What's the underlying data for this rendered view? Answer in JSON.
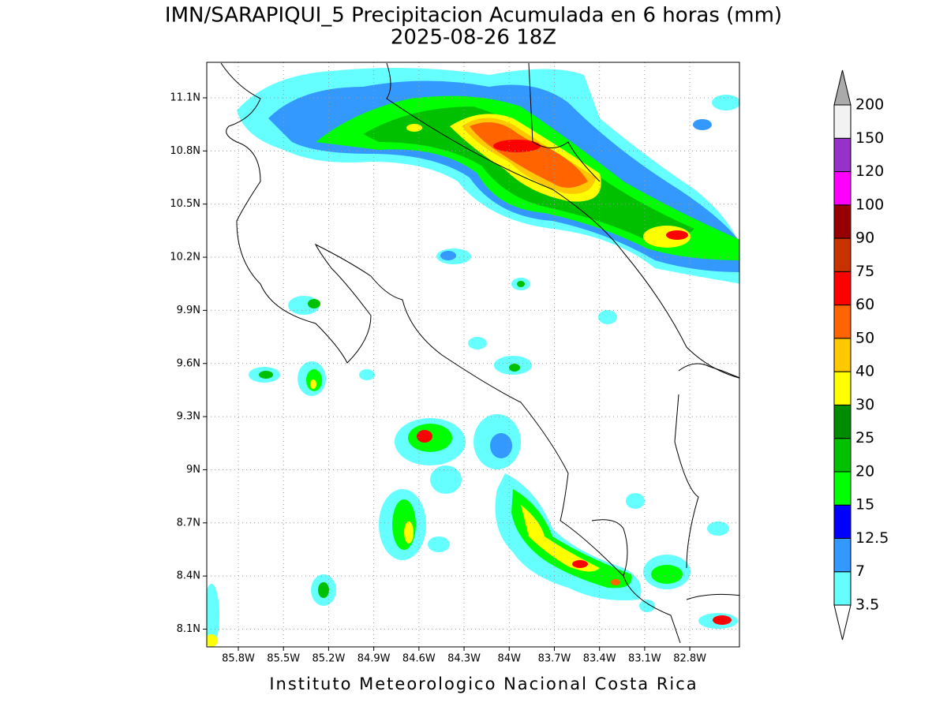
{
  "title": "IMN/SARAPIQUI_5 Precipitacion Acumulada en 6 horas (mm)",
  "subtitle": "2025-08-26 18Z",
  "footer": "Instituto Meteorologico Nacional Costa Rica",
  "map": {
    "lat_ticks": [
      {
        "value": 11.1,
        "label": "11.1N"
      },
      {
        "value": 10.8,
        "label": "10.8N"
      },
      {
        "value": 10.5,
        "label": "10.5N"
      },
      {
        "value": 10.2,
        "label": "10.2N"
      },
      {
        "value": 9.9,
        "label": "9.9N"
      },
      {
        "value": 9.6,
        "label": "9.6N"
      },
      {
        "value": 9.3,
        "label": "9.3N"
      },
      {
        "value": 9,
        "label": "9N"
      },
      {
        "value": 8.7,
        "label": "8.7N"
      },
      {
        "value": 8.4,
        "label": "8.4N"
      },
      {
        "value": 8.1,
        "label": "8.1N"
      }
    ],
    "lon_ticks": [
      {
        "value": -85.8,
        "label": "85.8W"
      },
      {
        "value": -85.5,
        "label": "85.5W"
      },
      {
        "value": -85.2,
        "label": "85.2W"
      },
      {
        "value": -84.9,
        "label": "84.9W"
      },
      {
        "value": -84.6,
        "label": "84.6W"
      },
      {
        "value": -84.3,
        "label": "84.3W"
      },
      {
        "value": -84,
        "label": "84W"
      },
      {
        "value": -83.7,
        "label": "83.7W"
      },
      {
        "value": -83.4,
        "label": "83.4W"
      },
      {
        "value": -83.1,
        "label": "83.1W"
      },
      {
        "value": -82.8,
        "label": "82.8W"
      }
    ]
  },
  "colorbar": {
    "levels": [
      3.5,
      7,
      12.5,
      15,
      20,
      25,
      30,
      40,
      50,
      60,
      75,
      90,
      100,
      120,
      150,
      200
    ],
    "colors": [
      "#66ffff",
      "#3399ff",
      "#0000ff",
      "#00ff00",
      "#00c000",
      "#008c00",
      "#ffff00",
      "#ffc800",
      "#ff6400",
      "#ff0000",
      "#c83200",
      "#960000",
      "#ff00ff",
      "#9632c8",
      "#f2f2f2"
    ],
    "over_color": "#aaaaaa",
    "under_color": "#ffffff"
  }
}
